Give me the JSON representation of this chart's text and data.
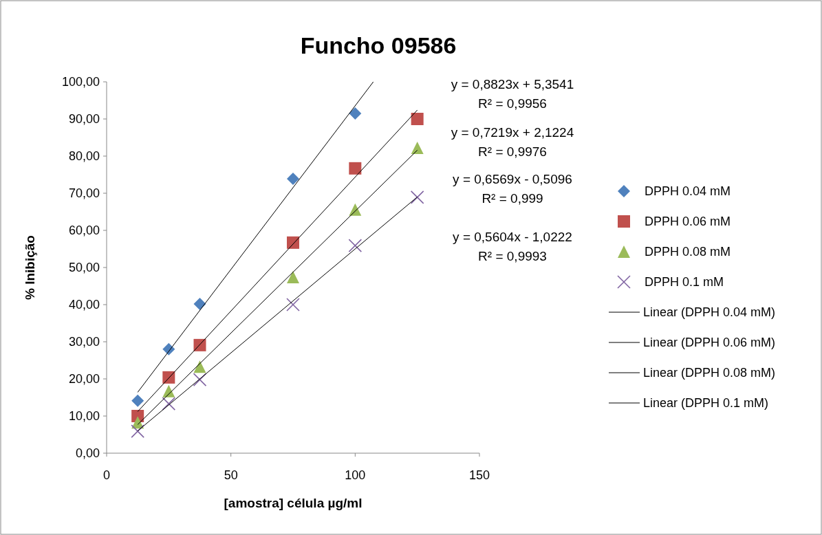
{
  "chart_data": {
    "type": "scatter",
    "title": "Funcho 09586",
    "xlabel": "[amostra] célula µg/ml",
    "ylabel": "% Inibição",
    "xlim": [
      0,
      150
    ],
    "xticks": [
      0,
      50,
      100,
      150
    ],
    "ylim": [
      0,
      100
    ],
    "yticks": [
      {
        "value": 0,
        "label": "0,00"
      },
      {
        "value": 10,
        "label": "10,00"
      },
      {
        "value": 20,
        "label": "20,00"
      },
      {
        "value": 30,
        "label": "30,00"
      },
      {
        "value": 40,
        "label": "40,00"
      },
      {
        "value": 50,
        "label": "50,00"
      },
      {
        "value": 60,
        "label": "60,00"
      },
      {
        "value": 70,
        "label": "70,00"
      },
      {
        "value": 80,
        "label": "80,00"
      },
      {
        "value": 90,
        "label": "90,00"
      },
      {
        "value": 100,
        "label": "100,00"
      }
    ],
    "grid": false,
    "legend": "right",
    "series": [
      {
        "name": "DPPH 0.04 mM",
        "color": "#4f81bd",
        "marker": "diamond",
        "x": [
          12.5,
          25,
          37.5,
          75,
          100
        ],
        "values": [
          14.1,
          28.0,
          40.2,
          73.9,
          91.5
        ]
      },
      {
        "name": "DPPH 0.06 mM",
        "color": "#c0504d",
        "marker": "square",
        "x": [
          12.5,
          25,
          37.5,
          75,
          100,
          125
        ],
        "values": [
          10.0,
          20.4,
          29.1,
          56.7,
          76.7,
          90.0
        ]
      },
      {
        "name": "DPPH 0.08 mM",
        "color": "#9bbb59",
        "marker": "triangle",
        "x": [
          12.5,
          25,
          37.5,
          75,
          100,
          125
        ],
        "values": [
          8.3,
          16.7,
          23.3,
          47.4,
          65.6,
          82.2
        ]
      },
      {
        "name": "DPPH 0.1 mM",
        "color": "#8064a2",
        "marker": "cross",
        "x": [
          12.5,
          25,
          37.5,
          75,
          100,
          125
        ],
        "values": [
          5.9,
          13.3,
          19.8,
          40.0,
          55.9,
          68.9
        ]
      },
      {
        "name": "Linear (DPPH 0.04 mM)",
        "type": "line",
        "color": "#000000",
        "marker": "none",
        "x": [
          12.5,
          107.3
        ],
        "values": [
          16.4,
          100
        ]
      },
      {
        "name": "Linear (DPPH 0.06 mM)",
        "type": "line",
        "color": "#000000",
        "marker": "none",
        "x": [
          12.5,
          125
        ],
        "values": [
          11.2,
          92.4
        ]
      },
      {
        "name": "Linear (DPPH 0.08 mM)",
        "type": "line",
        "color": "#000000",
        "marker": "none",
        "x": [
          12.5,
          125
        ],
        "values": [
          7.7,
          81.6
        ]
      },
      {
        "name": "Linear (DPPH 0.1 mM)",
        "type": "line",
        "color": "#000000",
        "marker": "none",
        "x": [
          12.5,
          125
        ],
        "values": [
          6.0,
          69.0
        ]
      }
    ],
    "annotations": [
      "y = 0,8823x + 5,3541",
      "R² = 0,9956",
      "y = 0,7219x + 2,1224",
      "R² = 0,9976",
      "y = 0,6569x - 0,5096",
      "R² = 0,999",
      "y = 0,5604x - 1,0222",
      "R² = 0,9993"
    ]
  }
}
